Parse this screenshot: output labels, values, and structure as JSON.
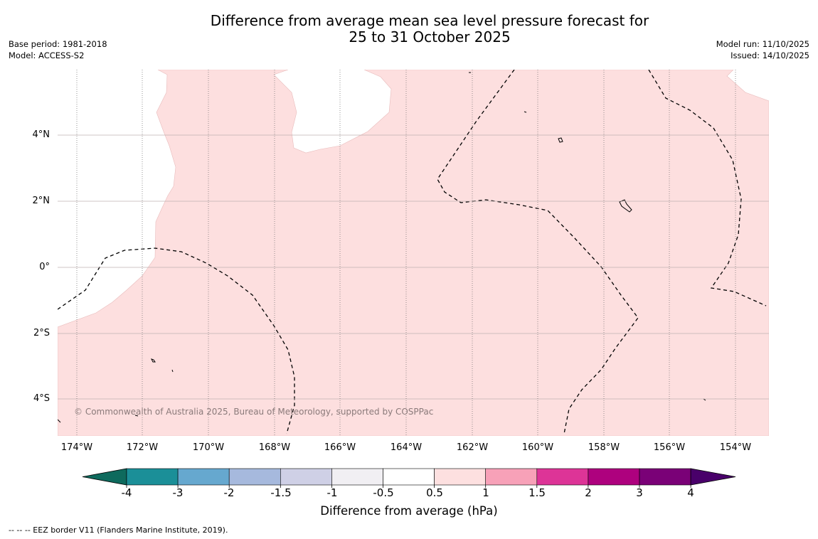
{
  "title": {
    "line1": "Difference from average mean sea level pressure forecast for",
    "line2": "25 to 31 October 2025"
  },
  "meta_left": {
    "base_period": "Base period: 1981-2018",
    "model": "Model: ACCESS-S2"
  },
  "meta_right": {
    "model_run": "Model run: 11/10/2025",
    "issued": "Issued: 14/10/2025"
  },
  "map": {
    "lat_labels": [
      "4°N",
      "2°N",
      "0°",
      "2°S",
      "4°S"
    ],
    "lon_labels": [
      "174°W",
      "172°W",
      "170°W",
      "168°W",
      "166°W",
      "164°W",
      "162°W",
      "160°W",
      "158°W",
      "156°W",
      "154°W"
    ],
    "copyright": "© Commonwealth of Australia 2025, Bureau of Meteorology, supported by COSPPac",
    "fill_color_hex": "#fddfdf"
  },
  "colorbar": {
    "labels": [
      "-4",
      "-3",
      "-2",
      "-1.5",
      "-1",
      "-0.5",
      "0.5",
      "1",
      "1.5",
      "2",
      "3",
      "4"
    ],
    "colors": [
      "#0e6a5d",
      "#1b8f98",
      "#66a8cf",
      "#a6b9dd",
      "#cfd0e6",
      "#f1eff3",
      "#ffffff",
      "#fde0e0",
      "#f7a1b8",
      "#dd3497",
      "#ae017e",
      "#7a0177",
      "#49006a"
    ],
    "title": "Difference from average (hPa)"
  },
  "footer": "--  --  -- EEZ border V11 (Flanders Marine Institute, 2019)."
}
